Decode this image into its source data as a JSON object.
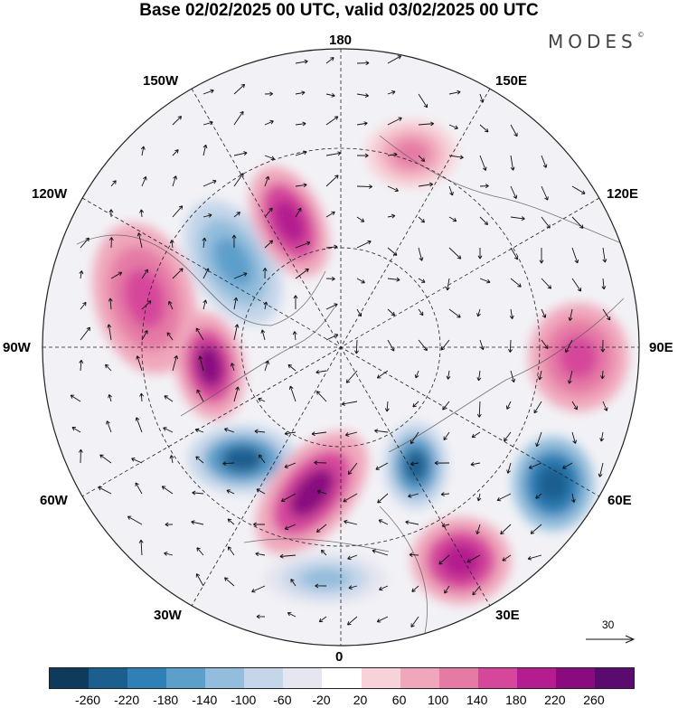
{
  "title": "Base 02/02/2025 00 UTC, valid 03/02/2025 00 UTC",
  "brand": "MODES",
  "brand_mark": "©",
  "meridian_labels": {
    "top": "180",
    "bottom": "0",
    "left": "90W",
    "right": "90E",
    "upper_left_1": "150W",
    "upper_left_2": "120W",
    "upper_right_1": "150E",
    "upper_right_2": "120E",
    "lower_left_1": "60W",
    "lower_left_2": "30W",
    "lower_right_1": "60E",
    "lower_right_2": "30E"
  },
  "vector_scale": "30",
  "colorbar": {
    "ticks": [
      "-260",
      "-220",
      "-180",
      "-140",
      "-100",
      "-60",
      "-20",
      "20",
      "60",
      "100",
      "140",
      "180",
      "220",
      "260"
    ],
    "colors": [
      "#0e3a5c",
      "#1b5f8f",
      "#2f80b6",
      "#5d9fcb",
      "#93bddc",
      "#c5d6ea",
      "#e6e6f0",
      "#ffffff",
      "#f7d2d8",
      "#f0a7bb",
      "#e57aa5",
      "#d6479b",
      "#b41c8f",
      "#8a0a80",
      "#5b0a70"
    ]
  },
  "anomalies": [
    {
      "name": "low-near-north-pacific",
      "value": -160
    },
    {
      "name": "high-bering",
      "value": 200
    },
    {
      "name": "high-central-canada",
      "value": 160
    },
    {
      "name": "high-labrador",
      "value": 240
    },
    {
      "name": "low-north-atlantic",
      "value": -240
    },
    {
      "name": "high-greenland-sea",
      "value": 220
    },
    {
      "name": "low-barents",
      "value": -240
    },
    {
      "name": "low-west-siberia",
      "value": -260
    },
    {
      "name": "high-central-asia",
      "value": 160
    },
    {
      "name": "high-east-europe",
      "value": 200
    },
    {
      "name": "high-east-siberia",
      "value": 120
    },
    {
      "name": "low-subpolar-atlantic",
      "value": -140
    }
  ]
}
